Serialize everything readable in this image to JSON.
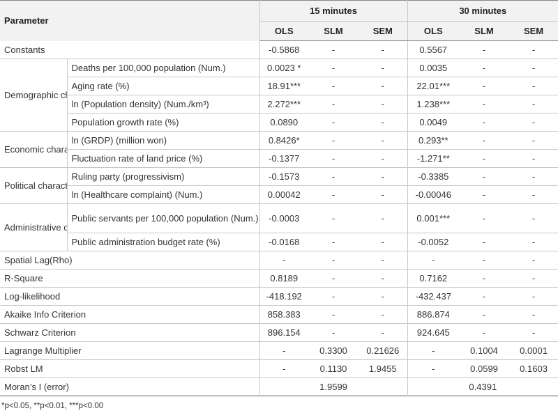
{
  "header": {
    "parameter": "Parameter",
    "group_15": "15 minutes",
    "group_30": "30 minutes",
    "ols": "OLS",
    "slm": "SLM",
    "sem": "SEM"
  },
  "rows": {
    "constants": {
      "label": "Constants",
      "v": [
        "-0.5868",
        "-",
        "-",
        "0.5567",
        "-",
        "-"
      ]
    },
    "demographic": {
      "category": "Demographic character",
      "items": [
        {
          "label": "Deaths per 100,000 population (Num.)",
          "v": [
            "0.0023 *",
            "-",
            "-",
            "0.0035",
            "-",
            "-"
          ]
        },
        {
          "label": "Aging rate (%)",
          "v": [
            "18.91***",
            "-",
            "-",
            "22.01***",
            "-",
            "-"
          ]
        },
        {
          "label": "ln (Population density) (Num./km³)",
          "v": [
            "2.272***",
            "-",
            "-",
            "1.238***",
            "-",
            "-"
          ]
        },
        {
          "label": "Population growth rate (%)",
          "v": [
            "0.0890",
            "-",
            "-",
            "0.0049",
            "-",
            "-"
          ]
        }
      ]
    },
    "economic": {
      "category": "Economic character",
      "items": [
        {
          "label": "ln (GRDP) (million won)",
          "v": [
            "0.8426*",
            "-",
            "-",
            "0.293**",
            "-",
            "-"
          ]
        },
        {
          "label": "Fluctuation rate of land price (%)",
          "v": [
            "-0.1377",
            "-",
            "-",
            "-1.271**",
            "-",
            "-"
          ]
        }
      ]
    },
    "political": {
      "category": "Political character",
      "items": [
        {
          "label": "Ruling party (progressivism)",
          "v": [
            "-0.1573",
            "-",
            "-",
            "-0.3385",
            "-",
            "-"
          ]
        },
        {
          "label": "ln (Healthcare complaint) (Num.)",
          "v": [
            "0.00042",
            "-",
            "-",
            "-0.00046",
            "-",
            "-"
          ]
        }
      ]
    },
    "administrative": {
      "category": "Administrative character",
      "items": [
        {
          "label": "Public servants per 100,000 population (Num.)",
          "v": [
            "-0.0003",
            "-",
            "-",
            "0.001***",
            "-",
            "-"
          ]
        },
        {
          "label": "Public administration budget rate (%)",
          "v": [
            "-0.0168",
            "-",
            "-",
            "-0.0052",
            "-",
            "-"
          ]
        }
      ]
    },
    "stats": [
      {
        "label": "Spatial Lag(Rho)",
        "v": [
          "-",
          "-",
          "-",
          "-",
          "-",
          "-"
        ]
      },
      {
        "label": "R-Square",
        "v": [
          "0.8189",
          "-",
          "-",
          "0.7162",
          "-",
          "-"
        ]
      },
      {
        "label": "Log-likelihood",
        "v": [
          "-418.192",
          "-",
          "-",
          "-432.437",
          "-",
          "-"
        ]
      },
      {
        "label": "Akaike Info Criterion",
        "v": [
          "858.383",
          "-",
          "-",
          "886.874",
          "-",
          "-"
        ]
      },
      {
        "label": "Schwarz Criterion",
        "v": [
          "896.154",
          "-",
          "-",
          "924.645",
          "-",
          "-"
        ]
      },
      {
        "label": "Lagrange Multiplier",
        "v": [
          "-",
          "0.3300",
          "0.21626",
          "-",
          "0.1004",
          "0.0001"
        ]
      },
      {
        "label": "Robst LM",
        "v": [
          "-",
          "0.1130",
          "1.9455",
          "-",
          "0.0599",
          "0.1603"
        ]
      }
    ],
    "morans": {
      "label": "Moran’s I (error)",
      "v15": "1.9599",
      "v30": "0.4391"
    }
  },
  "footnote": "*p<0.05, **p<0.01, ***p<0.00"
}
